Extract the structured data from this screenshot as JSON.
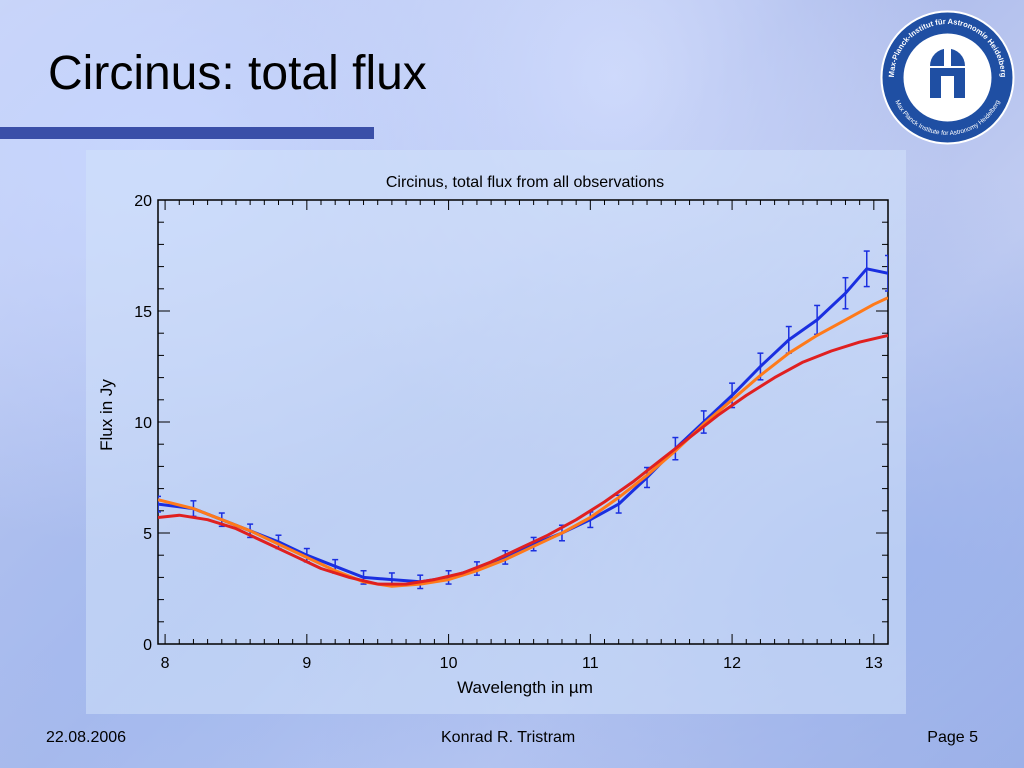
{
  "slide": {
    "title": "Circinus: total flux",
    "footer": {
      "date": "22.08.2006",
      "author": "Konrad R. Tristram",
      "page": "Page 5"
    },
    "logo": {
      "icon": "observatory-dome-icon",
      "ring_text_outer": "Max-Planck-Institut für Astronomie Heidelberg",
      "ring_text_inner": "Max Planck Institute for Astronomy Heidelberg",
      "color": "#1f4fa3"
    }
  },
  "chart_data": {
    "type": "line",
    "title": "Circinus, total flux from all observations",
    "xlabel": "Wavelength in µm",
    "ylabel": "Flux in Jy",
    "xlim": [
      7.95,
      13.1
    ],
    "ylim": [
      0,
      20
    ],
    "x_ticks": [
      8,
      9,
      10,
      11,
      12,
      13
    ],
    "y_ticks": [
      0,
      5,
      10,
      15,
      20
    ],
    "grid": false,
    "series": [
      {
        "color": "#1a2fe0",
        "error_bars": true,
        "x": [
          7.95,
          8.2,
          8.4,
          8.6,
          8.8,
          9.0,
          9.2,
          9.4,
          9.6,
          9.8,
          10.0,
          10.2,
          10.4,
          10.6,
          10.8,
          11.0,
          11.2,
          11.4,
          11.6,
          11.8,
          12.0,
          12.2,
          12.4,
          12.6,
          12.8,
          12.95,
          13.1
        ],
        "y": [
          6.3,
          6.1,
          5.6,
          5.1,
          4.6,
          4.0,
          3.5,
          3.0,
          2.9,
          2.8,
          3.0,
          3.4,
          3.9,
          4.5,
          5.0,
          5.6,
          6.3,
          7.5,
          8.8,
          10.0,
          11.2,
          12.5,
          13.7,
          14.6,
          15.8,
          16.9,
          16.7
        ],
        "errors": [
          0.35,
          0.35,
          0.3,
          0.3,
          0.3,
          0.3,
          0.3,
          0.3,
          0.3,
          0.3,
          0.3,
          0.3,
          0.3,
          0.3,
          0.35,
          0.35,
          0.4,
          0.45,
          0.5,
          0.5,
          0.55,
          0.6,
          0.6,
          0.65,
          0.7,
          0.8,
          0.8
        ]
      },
      {
        "color": "#ff7a1a",
        "error_bars": false,
        "x": [
          7.95,
          8.2,
          8.4,
          8.6,
          8.8,
          9.0,
          9.2,
          9.4,
          9.6,
          9.8,
          10.0,
          10.2,
          10.4,
          10.6,
          10.8,
          11.0,
          11.2,
          11.4,
          11.6,
          11.8,
          12.0,
          12.2,
          12.4,
          12.6,
          12.8,
          13.0,
          13.1
        ],
        "y": [
          6.5,
          6.1,
          5.6,
          5.1,
          4.5,
          3.9,
          3.3,
          2.8,
          2.6,
          2.7,
          2.9,
          3.3,
          3.8,
          4.4,
          5.0,
          5.7,
          6.6,
          7.6,
          8.7,
          9.9,
          11.0,
          12.1,
          13.1,
          13.9,
          14.6,
          15.3,
          15.6
        ]
      },
      {
        "color": "#e02020",
        "error_bars": false,
        "x": [
          7.95,
          8.1,
          8.3,
          8.5,
          8.7,
          8.9,
          9.1,
          9.3,
          9.5,
          9.7,
          9.9,
          10.1,
          10.3,
          10.5,
          10.7,
          10.9,
          11.1,
          11.3,
          11.5,
          11.7,
          11.9,
          12.1,
          12.3,
          12.5,
          12.7,
          12.9,
          13.1
        ],
        "y": [
          5.7,
          5.8,
          5.6,
          5.2,
          4.6,
          4.0,
          3.4,
          3.0,
          2.7,
          2.7,
          2.9,
          3.2,
          3.7,
          4.3,
          4.9,
          5.6,
          6.4,
          7.3,
          8.3,
          9.3,
          10.3,
          11.2,
          12.0,
          12.7,
          13.2,
          13.6,
          13.9
        ]
      }
    ]
  }
}
